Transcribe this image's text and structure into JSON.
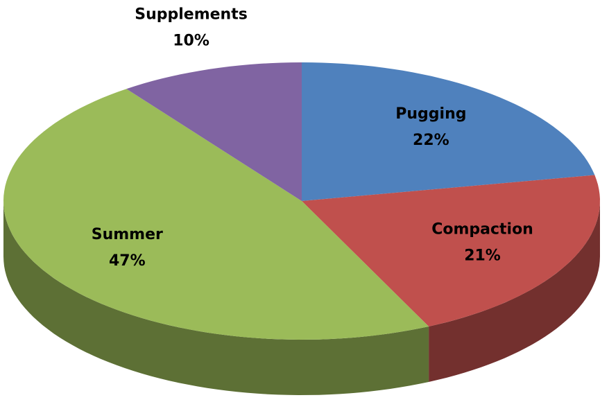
{
  "chart_data": {
    "type": "pie",
    "categories": [
      "Pugging",
      "Compaction",
      "Summer",
      "Supplements"
    ],
    "values": [
      22,
      21,
      47,
      10
    ],
    "value_labels": [
      "22%",
      "21%",
      "47%",
      "10%"
    ],
    "colors": [
      "#4f81bd",
      "#c0504d",
      "#9bbb59",
      "#8064a2"
    ]
  }
}
